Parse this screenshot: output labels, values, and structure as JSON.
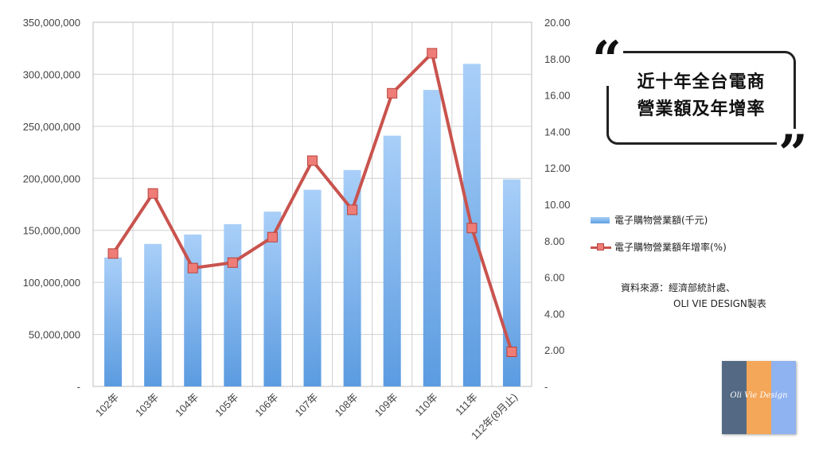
{
  "chart_data": {
    "type": "bar+line",
    "categories": [
      "102年",
      "103年",
      "104年",
      "105年",
      "106年",
      "107年",
      "108年",
      "109年",
      "110年",
      "111年",
      "112年(8月止)"
    ],
    "series": [
      {
        "name": "電子購物營業額(千元)",
        "type": "bar",
        "axis": "left",
        "values": [
          124000000,
          137000000,
          146000000,
          156000000,
          168000000,
          189000000,
          208000000,
          241000000,
          285000000,
          310000000,
          199000000
        ]
      },
      {
        "name": "電子購物營業額年增率(%)",
        "type": "line",
        "axis": "right",
        "values": [
          7.3,
          10.6,
          6.5,
          6.8,
          8.2,
          12.4,
          9.7,
          16.1,
          18.3,
          8.7,
          1.9
        ]
      }
    ],
    "y_left": {
      "range": [
        0,
        350000000
      ],
      "tick_labels": [
        "-",
        "50,000,000",
        "100,000,000",
        "150,000,000",
        "200,000,000",
        "250,000,000",
        "300,000,000",
        "350,000,000"
      ]
    },
    "y_right": {
      "range": [
        0,
        20
      ],
      "tick_labels": [
        "-",
        "2.00",
        "4.00",
        "6.00",
        "8.00",
        "10.00",
        "12.00",
        "14.00",
        "16.00",
        "18.00",
        "20.00"
      ]
    },
    "grid": true,
    "legend_position": "right",
    "colors": {
      "bar_top": "#a9cff8",
      "bar_bottom": "#5b9be0",
      "line": "#c9534e",
      "marker": "#ee7d77"
    }
  },
  "title_lines": [
    "近十年全台電商",
    "營業額及年增率"
  ],
  "quote_open": "“",
  "quote_close": "”",
  "source_lines": [
    "資料來源：經濟部統計處、",
    "OLI VIE DESIGN製表"
  ],
  "logo_text": "Oli Vie Design",
  "logo_colors": [
    "#546a84",
    "#f4a659",
    "#8fb2f0"
  ]
}
